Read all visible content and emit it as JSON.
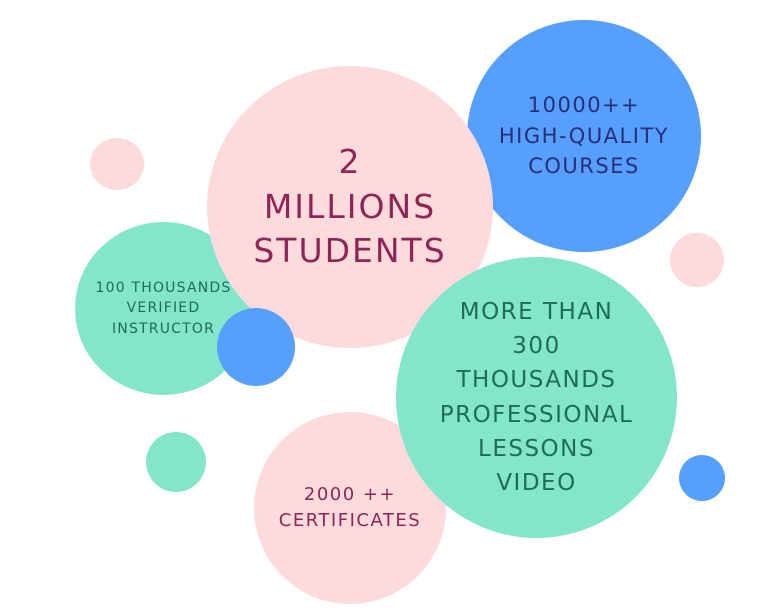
{
  "stats": {
    "students": {
      "line1": "2",
      "line2": "MILLIONS",
      "line3": "STUDENTS",
      "color": "#fddbdc"
    },
    "courses": {
      "line1": "10000++",
      "line2": "HIGH-QUALITY",
      "line3": "COURSES",
      "color": "#569ffd"
    },
    "instructors": {
      "line1": "100 THOUSANDS",
      "line2": "VERIFIED",
      "line3": "INSTRUCTOR",
      "color": "#83e5ca"
    },
    "lessons": {
      "line1": "MORE THAN",
      "line2": "300",
      "line3": "THOUSANDS",
      "line4": "PROFESSIONAL",
      "line5": "LESSONS",
      "line6": "VIDEO",
      "color": "#83e5ca"
    },
    "certificates": {
      "line1": "2000 ++",
      "line2": "CERTIFICATES",
      "color": "#fddbdc"
    }
  },
  "palette": {
    "pink": "#fddbdc",
    "blue": "#569ffd",
    "mint": "#83e5ca",
    "text_magenta": "#8e2557",
    "text_navy": "#2a2e78",
    "text_green": "#1e6c59"
  }
}
